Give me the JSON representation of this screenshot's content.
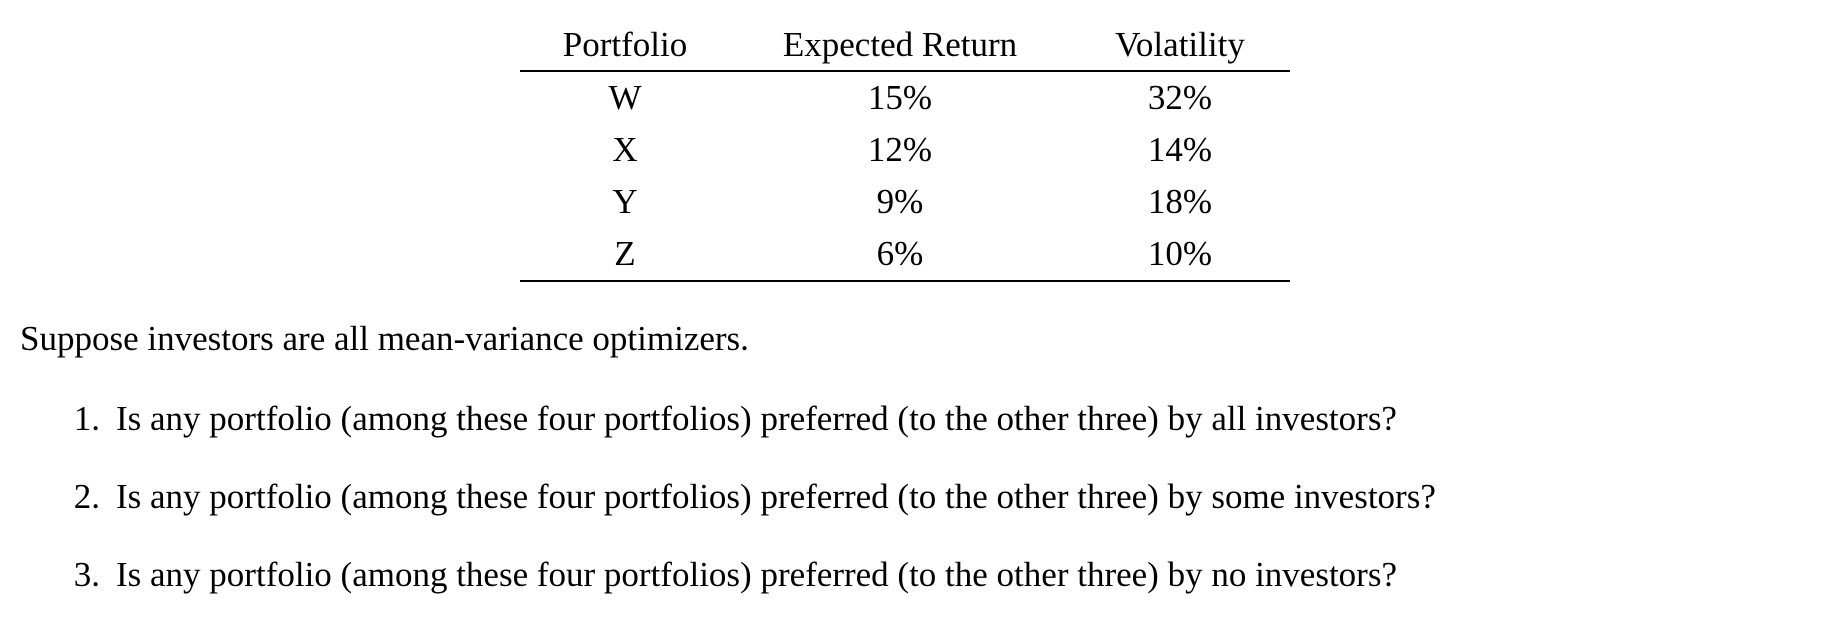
{
  "table": {
    "headers": [
      "Portfolio",
      "Expected Return",
      "Volatility"
    ],
    "rows": [
      {
        "portfolio": "W",
        "expected_return": "15%",
        "volatility": "32%"
      },
      {
        "portfolio": "X",
        "expected_return": "12%",
        "volatility": "14%"
      },
      {
        "portfolio": "Y",
        "expected_return": "9%",
        "volatility": "18%"
      },
      {
        "portfolio": "Z",
        "expected_return": "6%",
        "volatility": "10%"
      }
    ]
  },
  "intro_text": "Suppose investors are all mean-variance optimizers.",
  "questions": [
    {
      "number": "1.",
      "text": "Is any portfolio (among these four portfolios) preferred (to the other three) by all investors?"
    },
    {
      "number": "2.",
      "text": "Is any portfolio (among these four portfolios) preferred (to the other three) by some investors?"
    },
    {
      "number": "3.",
      "text": "Is any portfolio (among these four portfolios) preferred (to the other three) by no investors?"
    }
  ],
  "colors": {
    "background": "#ffffff",
    "text": "#000000",
    "rule": "#000000"
  }
}
